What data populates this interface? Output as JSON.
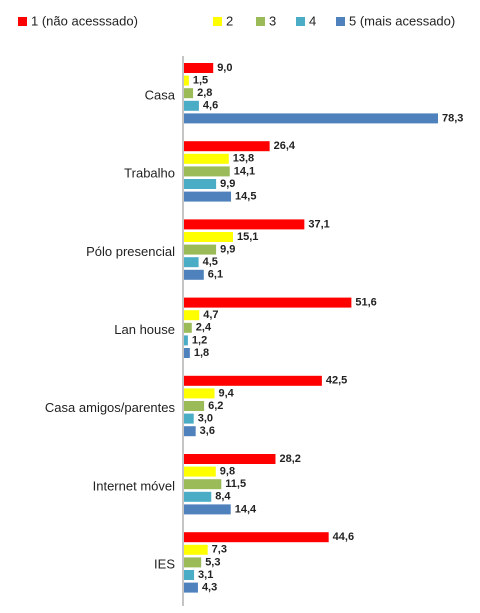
{
  "chart_data": {
    "type": "bar",
    "orientation": "horizontal",
    "categories": [
      "Casa",
      "Trabalho",
      "Pólo presencial",
      "Lan house",
      "Casa amigos/parentes",
      "Internet móvel",
      "IES"
    ],
    "series": [
      {
        "name": "1 (não acesssado)",
        "color": "#ff0000",
        "values": [
          9.0,
          26.4,
          37.1,
          51.6,
          42.5,
          28.2,
          44.6
        ],
        "value_labels": [
          "9,0",
          "26,4",
          "37,1",
          "51,6",
          "42,5",
          "28,2",
          "44,6"
        ]
      },
      {
        "name": "2",
        "color": "#ffff00",
        "values": [
          1.5,
          13.8,
          15.1,
          4.7,
          9.4,
          9.8,
          7.3
        ],
        "value_labels": [
          "1,5",
          "13,8",
          "15,1",
          "4,7",
          "9,4",
          "9,8",
          "7,3"
        ]
      },
      {
        "name": "3",
        "color": "#9bbb59",
        "values": [
          2.8,
          14.1,
          9.9,
          2.4,
          6.2,
          11.5,
          5.3
        ],
        "value_labels": [
          "2,8",
          "14,1",
          "9,9",
          "2,4",
          "6,2",
          "11,5",
          "5,3"
        ]
      },
      {
        "name": "4",
        "color": "#4bacc6",
        "values": [
          4.6,
          9.9,
          4.5,
          1.2,
          3.0,
          8.4,
          3.1
        ],
        "value_labels": [
          "4,6",
          "9,9",
          "4,5",
          "1,2",
          "3,0",
          "8,4",
          "3,1"
        ]
      },
      {
        "name": "5 (mais acessado)",
        "color": "#4f81bd",
        "values": [
          78.3,
          14.5,
          6.1,
          1.8,
          3.6,
          14.4,
          4.3
        ],
        "value_labels": [
          "78,3",
          "14,5",
          "6,1",
          "1,8",
          "3,6",
          "14,4",
          "4,3"
        ]
      }
    ],
    "legend": "top"
  }
}
